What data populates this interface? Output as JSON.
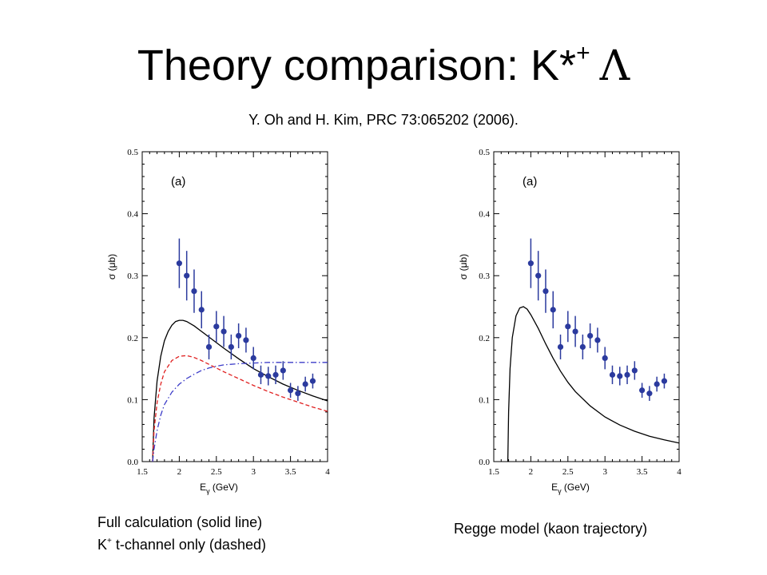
{
  "slide": {
    "title_main": "Theory comparison: K*",
    "title_sup": "+",
    "title_greek": "Λ",
    "subtitle": "Y. Oh and H. Kim, PRC 73:065202 (2006).",
    "caption_left_line1": "Full calculation (solid line)",
    "caption_left_line2_pre": "K",
    "caption_left_line2_sup": "+",
    "caption_left_line2_post": " t-channel only (dashed)",
    "caption_right": "Regge model (kaon trajectory)"
  },
  "chart_data": [
    {
      "type": "scatter",
      "panel_label": "(a)",
      "ylabel": "σ  (μb)",
      "xlabel": "E",
      "xlabel_sub": "γ",
      "xlabel_unit": "(GeV)",
      "xlim": [
        1.5,
        4.0
      ],
      "ylim": [
        0.0,
        0.5
      ],
      "xticks": [
        "1.5",
        "2",
        "2.5",
        "3",
        "3.5",
        "4"
      ],
      "yticks": [
        "0.0",
        "0.1",
        "0.2",
        "0.3",
        "0.4",
        "0.5"
      ],
      "points": [
        {
          "x": 2.0,
          "y": 0.32,
          "err": 0.04
        },
        {
          "x": 2.1,
          "y": 0.3,
          "err": 0.04
        },
        {
          "x": 2.2,
          "y": 0.275,
          "err": 0.035
        },
        {
          "x": 2.3,
          "y": 0.245,
          "err": 0.03
        },
        {
          "x": 2.4,
          "y": 0.185,
          "err": 0.02
        },
        {
          "x": 2.5,
          "y": 0.218,
          "err": 0.025
        },
        {
          "x": 2.6,
          "y": 0.21,
          "err": 0.025
        },
        {
          "x": 2.7,
          "y": 0.185,
          "err": 0.02
        },
        {
          "x": 2.8,
          "y": 0.203,
          "err": 0.02
        },
        {
          "x": 2.9,
          "y": 0.196,
          "err": 0.02
        },
        {
          "x": 3.0,
          "y": 0.167,
          "err": 0.018
        },
        {
          "x": 3.1,
          "y": 0.14,
          "err": 0.015
        },
        {
          "x": 3.2,
          "y": 0.138,
          "err": 0.015
        },
        {
          "x": 3.3,
          "y": 0.14,
          "err": 0.015
        },
        {
          "x": 3.4,
          "y": 0.147,
          "err": 0.015
        },
        {
          "x": 3.5,
          "y": 0.115,
          "err": 0.012
        },
        {
          "x": 3.6,
          "y": 0.11,
          "err": 0.012
        },
        {
          "x": 3.7,
          "y": 0.125,
          "err": 0.012
        },
        {
          "x": 3.8,
          "y": 0.13,
          "err": 0.012
        }
      ],
      "curves": [
        {
          "style": "solid",
          "color": "#000000",
          "x": [
            1.64,
            1.66,
            1.7,
            1.75,
            1.8,
            1.85,
            1.9,
            1.95,
            2.0,
            2.05,
            2.1,
            2.2,
            2.3,
            2.4,
            2.5,
            2.6,
            2.8,
            3.0,
            3.2,
            3.4,
            3.6,
            3.8,
            4.0
          ],
          "y": [
            0.0,
            0.07,
            0.13,
            0.17,
            0.195,
            0.21,
            0.22,
            0.226,
            0.228,
            0.228,
            0.226,
            0.219,
            0.21,
            0.201,
            0.192,
            0.183,
            0.166,
            0.15,
            0.137,
            0.125,
            0.115,
            0.106,
            0.098
          ]
        },
        {
          "style": "dashed",
          "color": "#e02020",
          "x": [
            1.64,
            1.66,
            1.7,
            1.75,
            1.8,
            1.9,
            2.0,
            2.1,
            2.2,
            2.3,
            2.4,
            2.6,
            2.8,
            3.0,
            3.2,
            3.4,
            3.6,
            3.8,
            4.0
          ],
          "y": [
            0.0,
            0.05,
            0.095,
            0.125,
            0.145,
            0.163,
            0.17,
            0.171,
            0.168,
            0.163,
            0.157,
            0.145,
            0.134,
            0.123,
            0.113,
            0.104,
            0.096,
            0.088,
            0.081
          ]
        },
        {
          "style": "dashdot",
          "color": "#3c3cc8",
          "x": [
            1.64,
            1.66,
            1.7,
            1.75,
            1.8,
            1.9,
            2.0,
            2.1,
            2.2,
            2.3,
            2.4,
            2.5,
            2.6,
            2.8,
            3.0,
            3.2,
            3.5,
            4.0
          ],
          "y": [
            0.0,
            0.02,
            0.05,
            0.075,
            0.092,
            0.112,
            0.125,
            0.134,
            0.141,
            0.147,
            0.151,
            0.154,
            0.156,
            0.158,
            0.159,
            0.16,
            0.16,
            0.16
          ]
        }
      ]
    },
    {
      "type": "scatter",
      "panel_label": "(a)",
      "ylabel": "σ  (μb)",
      "xlabel": "E",
      "xlabel_sub": "γ",
      "xlabel_unit": "(GeV)",
      "xlim": [
        1.5,
        4.0
      ],
      "ylim": [
        0.0,
        0.5
      ],
      "xticks": [
        "1.5",
        "2",
        "2.5",
        "3",
        "3.5",
        "4"
      ],
      "yticks": [
        "0.0",
        "0.1",
        "0.2",
        "0.3",
        "0.4",
        "0.5"
      ],
      "points": [
        {
          "x": 2.0,
          "y": 0.32,
          "err": 0.04
        },
        {
          "x": 2.1,
          "y": 0.3,
          "err": 0.04
        },
        {
          "x": 2.2,
          "y": 0.275,
          "err": 0.035
        },
        {
          "x": 2.3,
          "y": 0.245,
          "err": 0.03
        },
        {
          "x": 2.4,
          "y": 0.185,
          "err": 0.02
        },
        {
          "x": 2.5,
          "y": 0.218,
          "err": 0.025
        },
        {
          "x": 2.6,
          "y": 0.21,
          "err": 0.025
        },
        {
          "x": 2.7,
          "y": 0.185,
          "err": 0.02
        },
        {
          "x": 2.8,
          "y": 0.203,
          "err": 0.02
        },
        {
          "x": 2.9,
          "y": 0.196,
          "err": 0.02
        },
        {
          "x": 3.0,
          "y": 0.167,
          "err": 0.018
        },
        {
          "x": 3.1,
          "y": 0.14,
          "err": 0.015
        },
        {
          "x": 3.2,
          "y": 0.138,
          "err": 0.015
        },
        {
          "x": 3.3,
          "y": 0.14,
          "err": 0.015
        },
        {
          "x": 3.4,
          "y": 0.147,
          "err": 0.015
        },
        {
          "x": 3.5,
          "y": 0.115,
          "err": 0.012
        },
        {
          "x": 3.6,
          "y": 0.11,
          "err": 0.012
        },
        {
          "x": 3.7,
          "y": 0.125,
          "err": 0.012
        },
        {
          "x": 3.8,
          "y": 0.13,
          "err": 0.012
        }
      ],
      "curves": [
        {
          "style": "solid",
          "color": "#000000",
          "x": [
            1.69,
            1.7,
            1.72,
            1.75,
            1.8,
            1.85,
            1.9,
            1.95,
            2.0,
            2.1,
            2.2,
            2.3,
            2.4,
            2.5,
            2.6,
            2.8,
            3.0,
            3.2,
            3.4,
            3.6,
            3.8,
            4.0
          ],
          "y": [
            0.0,
            0.08,
            0.15,
            0.2,
            0.235,
            0.248,
            0.25,
            0.246,
            0.237,
            0.215,
            0.19,
            0.167,
            0.146,
            0.128,
            0.113,
            0.09,
            0.072,
            0.059,
            0.049,
            0.041,
            0.035,
            0.03
          ]
        }
      ]
    }
  ]
}
